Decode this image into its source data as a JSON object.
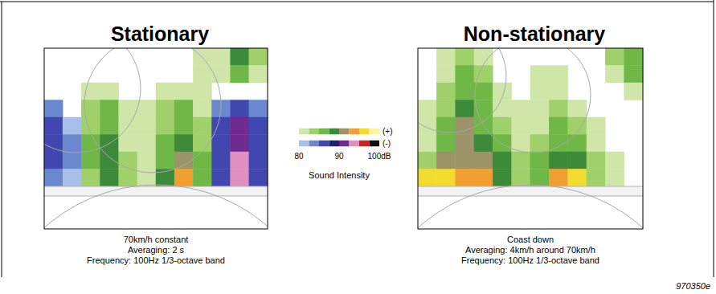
{
  "chart_data": [
    {
      "type": "heatmap",
      "title": "Stationary",
      "caption": [
        "70km/h constant",
        "Averaging: 2 s",
        "Frequency: 100Hz 1/3-octave band"
      ],
      "tick_labels": false,
      "cells": [
        [
          null,
          null,
          null,
          null,
          null,
          null,
          null,
          null,
          81,
          82,
          88,
          83
        ],
        [
          null,
          null,
          null,
          null,
          null,
          null,
          null,
          null,
          81,
          82,
          86,
          82
        ],
        [
          null,
          null,
          82,
          82,
          null,
          null,
          81,
          82,
          81,
          null,
          null,
          null
        ],
        [
          -83,
          null,
          83,
          85,
          81,
          81,
          83,
          85,
          82,
          -84,
          -86,
          -83
        ],
        [
          -85,
          -82,
          84,
          87,
          82,
          81,
          84,
          87,
          83,
          -86,
          -90,
          -85
        ],
        [
          -87,
          -83,
          85,
          88,
          82,
          81,
          85,
          89,
          84,
          -87,
          -92,
          -86
        ],
        [
          -87,
          -83,
          85,
          89,
          83,
          81,
          86,
          91,
          85,
          -87,
          -94,
          -86
        ],
        [
          -84,
          -82,
          84,
          88,
          83,
          82,
          88,
          93,
          86,
          -86,
          -93,
          -85
        ]
      ]
    },
    {
      "type": "heatmap",
      "title": "Non-stationary",
      "caption": [
        "Coast down",
        "Averaging: 4km/h around 70km/h",
        "Frequency: 100Hz 1/3-octave band"
      ],
      "tick_labels": false,
      "cells": [
        [
          null,
          81,
          83,
          82,
          null,
          null,
          null,
          null,
          null,
          null,
          83,
          86
        ],
        [
          null,
          82,
          85,
          84,
          null,
          null,
          81,
          82,
          null,
          null,
          82,
          87
        ],
        [
          null,
          83,
          87,
          85,
          81,
          null,
          81,
          81,
          null,
          null,
          null,
          82
        ],
        [
          81,
          84,
          89,
          86,
          82,
          81,
          81,
          83,
          82,
          null,
          null,
          null
        ],
        [
          81,
          85,
          90,
          87,
          83,
          82,
          82,
          85,
          83,
          81,
          null,
          null
        ],
        [
          82,
          87,
          91,
          88,
          85,
          82,
          84,
          87,
          85,
          82,
          null,
          null
        ],
        [
          84,
          90,
          92,
          91,
          88,
          83,
          86,
          89,
          88,
          83,
          81,
          null
        ],
        [
          96,
          95,
          93,
          94,
          89,
          84,
          87,
          93,
          95,
          84,
          81,
          null
        ]
      ]
    }
  ],
  "color_bar": {
    "title": "Sound Intensity",
    "range": [
      80,
      100
    ],
    "ticks": [
      80,
      90,
      {
        "value": 100,
        "label": "100dB"
      }
    ],
    "positive_label": "(+)",
    "negative_label": "(-)",
    "positive_colors": [
      "#cfe6a8",
      "#9fd06a",
      "#6fb848",
      "#3c8a3a",
      "#9c9468",
      "#f0a030",
      "#f2dc30",
      "#fbf3a0"
    ],
    "negative_colors": [
      "#a8c0e8",
      "#6a88d0",
      "#4048b0",
      "#202070",
      "#702a90",
      "#e090c0",
      "#d02020",
      "#101010"
    ]
  },
  "figure_id": "970350e"
}
